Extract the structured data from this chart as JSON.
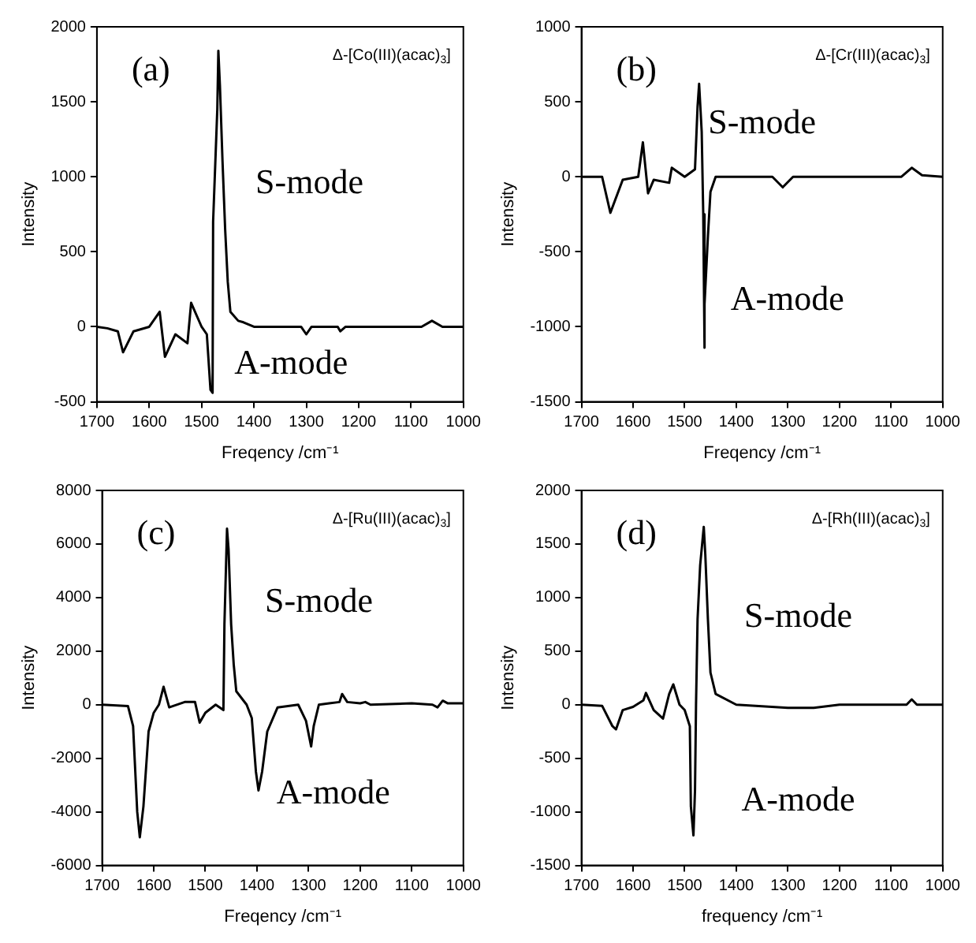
{
  "chart_data": [
    {
      "type": "line",
      "xlabel": "Freqency /cm⁻¹",
      "ylabel": "Intensity",
      "xlim": [
        1700,
        1000
      ],
      "xticks": [
        1700,
        1600,
        1500,
        1400,
        1300,
        1200,
        1100,
        1000
      ],
      "ylim": [
        -500,
        2000
      ],
      "yticks": [
        -500,
        0,
        500,
        1000,
        1500,
        2000
      ],
      "grid": false,
      "color": "#000000",
      "x": [
        1700,
        1680,
        1660,
        1650,
        1630,
        1600,
        1580,
        1570,
        1550,
        1527,
        1520,
        1500,
        1490,
        1483,
        1479,
        1478,
        1470,
        1468,
        1465,
        1460,
        1455,
        1450,
        1445,
        1430,
        1420,
        1400,
        1310,
        1300,
        1290,
        1240,
        1235,
        1225,
        1080,
        1060,
        1040,
        1000
      ],
      "values": [
        0,
        -10,
        -30,
        -170,
        -30,
        0,
        100,
        -200,
        -50,
        -110,
        160,
        0,
        -50,
        -420,
        -440,
        700,
        1450,
        1840,
        1610,
        1100,
        650,
        300,
        100,
        40,
        30,
        0,
        0,
        -50,
        0,
        0,
        -30,
        0,
        0,
        40,
        0,
        0
      ],
      "annotations": [
        "(a)",
        "Δ-[Co(III)(acac)$_{3}$]",
        "S-mode",
        "A-mode"
      ]
    },
    {
      "type": "line",
      "xlabel": "Freqency /cm⁻¹",
      "ylabel": "Intensity",
      "xlim": [
        1700,
        1000
      ],
      "xticks": [
        1700,
        1600,
        1500,
        1400,
        1300,
        1200,
        1100,
        1000
      ],
      "ylim": [
        -1500,
        1000
      ],
      "yticks": [
        -1500,
        -1000,
        -500,
        0,
        500,
        1000
      ],
      "grid": false,
      "color": "#000000",
      "x": [
        1700,
        1660,
        1644,
        1620,
        1590,
        1581,
        1571,
        1560,
        1530,
        1525,
        1500,
        1480,
        1475,
        1472,
        1467,
        1464,
        1462,
        1461,
        1455,
        1450,
        1440,
        1330,
        1310,
        1290,
        1240,
        1080,
        1060,
        1040,
        1000
      ],
      "values": [
        0,
        0,
        -240,
        -20,
        0,
        230,
        -110,
        -20,
        -40,
        60,
        0,
        50,
        470,
        620,
        300,
        -250,
        -1140,
        -850,
        -400,
        -100,
        0,
        0,
        -70,
        0,
        0,
        0,
        60,
        10,
        0
      ],
      "annotations": [
        "(b)",
        "Δ-[Cr(III)(acac)$_{3}$]",
        "S-mode",
        "A-mode"
      ]
    },
    {
      "type": "line",
      "xlabel": "Freqency /cm⁻¹",
      "ylabel": "Intensity",
      "xlim": [
        1700,
        1000
      ],
      "xticks": [
        1700,
        1600,
        1500,
        1400,
        1300,
        1200,
        1100,
        1000
      ],
      "ylim": [
        -6000,
        8000
      ],
      "yticks": [
        -6000,
        -4000,
        -2000,
        0,
        2000,
        4000,
        6000,
        8000
      ],
      "grid": false,
      "color": "#000000",
      "x": [
        1700,
        1650,
        1640,
        1632,
        1627,
        1620,
        1610,
        1600,
        1590,
        1581,
        1570,
        1540,
        1520,
        1511,
        1500,
        1480,
        1465,
        1463,
        1458,
        1455,
        1450,
        1445,
        1440,
        1420,
        1410,
        1402,
        1397,
        1390,
        1380,
        1360,
        1320,
        1305,
        1295,
        1290,
        1280,
        1260,
        1240,
        1235,
        1225,
        1200,
        1190,
        1180,
        1100,
        1060,
        1050,
        1040,
        1030,
        1000
      ],
      "values": [
        0,
        -50,
        -800,
        -4000,
        -4950,
        -3800,
        -1000,
        -300,
        0,
        670,
        -100,
        100,
        100,
        -670,
        -300,
        0,
        -200,
        3000,
        6570,
        5800,
        3000,
        1500,
        500,
        0,
        -500,
        -2500,
        -3200,
        -2500,
        -1000,
        -100,
        0,
        -600,
        -1560,
        -800,
        0,
        50,
        100,
        400,
        100,
        50,
        100,
        0,
        50,
        0,
        -100,
        150,
        50,
        50
      ],
      "annotations": [
        "(c)",
        "Δ-[Ru(III)(acac)$_{3}$]",
        "S-mode",
        "A-mode"
      ]
    },
    {
      "type": "line",
      "xlabel": "frequency /cm⁻¹",
      "ylabel": "Intensity",
      "xlim": [
        1700,
        1000
      ],
      "xticks": [
        1700,
        1600,
        1500,
        1400,
        1300,
        1200,
        1100,
        1000
      ],
      "ylim": [
        -1500,
        2000
      ],
      "yticks": [
        -1500,
        -1000,
        -500,
        0,
        500,
        1000,
        1500,
        2000
      ],
      "grid": false,
      "color": "#000000",
      "x": [
        1700,
        1660,
        1640,
        1633,
        1620,
        1600,
        1580,
        1575,
        1560,
        1542,
        1530,
        1522,
        1510,
        1500,
        1490,
        1488,
        1483,
        1480,
        1478,
        1475,
        1470,
        1463,
        1460,
        1455,
        1450,
        1440,
        1400,
        1300,
        1250,
        1200,
        1070,
        1060,
        1050,
        1000
      ],
      "values": [
        0,
        -10,
        -200,
        -230,
        -50,
        -20,
        40,
        110,
        -50,
        -130,
        100,
        190,
        0,
        -50,
        -200,
        -950,
        -1220,
        -800,
        0,
        800,
        1300,
        1660,
        1400,
        800,
        300,
        100,
        0,
        -30,
        -30,
        0,
        0,
        50,
        0,
        0
      ],
      "annotations": [
        "(d)",
        "Δ-[Rh(III)(acac)$_{3}$]",
        "S-mode",
        "A-mode"
      ]
    }
  ]
}
